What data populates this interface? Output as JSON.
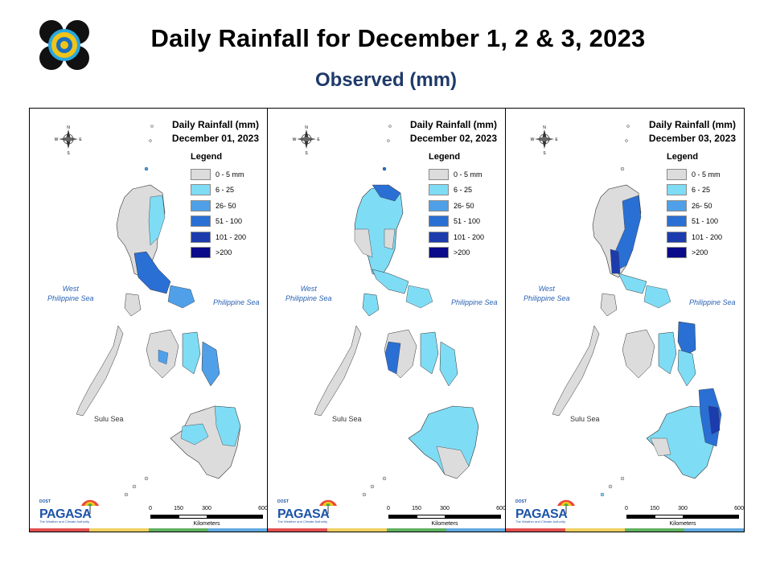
{
  "header": {
    "title": "Daily Rainfall for December 1, 2 & 3, 2023",
    "subtitle": "Observed (mm)"
  },
  "legend": {
    "title": "Legend",
    "items": [
      {
        "label": "0 - 5 mm",
        "color": "#dcdcdc"
      },
      {
        "label": "6 - 25",
        "color": "#7fdcf5"
      },
      {
        "label": "26- 50",
        "color": "#4fa0e8"
      },
      {
        "label": "51 - 100",
        "color": "#2a6fd4"
      },
      {
        "label": "101 - 200",
        "color": "#1c3cae"
      },
      {
        "label": ">200",
        "color": "#0a0a8a"
      }
    ]
  },
  "map_labels": {
    "west_sea_line1": "West",
    "west_sea_line2": "Philippine Sea",
    "philippine_sea": "Philippine Sea",
    "sulu_sea": "Sulu Sea"
  },
  "compass": {
    "n": "N",
    "s": "S",
    "e": "E",
    "w": "W"
  },
  "scale": {
    "ticks": [
      "0",
      "150",
      "300",
      "600"
    ],
    "unit": "Kilometers"
  },
  "brand": {
    "top": "DOST",
    "name": "PAGASA",
    "sub": "The Weather and Climate Authority"
  },
  "panels": [
    {
      "title_line1": "Daily Rainfall (mm)",
      "title_line2": "December 01, 2023"
    },
    {
      "title_line1": "Daily Rainfall (mm)",
      "title_line2": "December 02, 2023"
    },
    {
      "title_line1": "Daily Rainfall (mm)",
      "title_line2": "December 03, 2023"
    }
  ]
}
